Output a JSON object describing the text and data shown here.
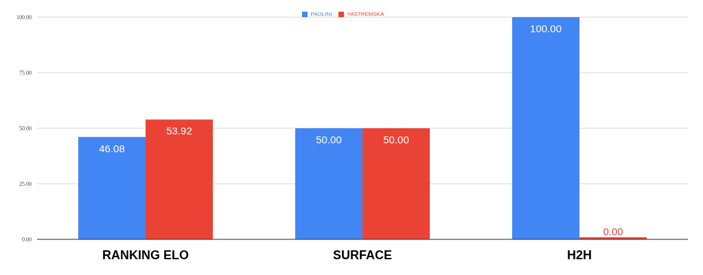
{
  "chart_data": {
    "type": "bar",
    "categories": [
      "RANKING ELO",
      "SURFACE",
      "H2H"
    ],
    "series": [
      {
        "name": "PAOLINI",
        "color": "#4285f4",
        "values": [
          46.08,
          50,
          100
        ],
        "value_labels": [
          "46.08",
          "50.00",
          "100.00"
        ]
      },
      {
        "name": "YASTREMSKA",
        "color": "#ea4335",
        "values": [
          53.92,
          50,
          0
        ],
        "value_labels": [
          "53.92",
          "50.00",
          "0.00"
        ]
      }
    ],
    "ylim": [
      0,
      100
    ],
    "yticks": [
      {
        "value": 0,
        "label": "0.00"
      },
      {
        "value": 25,
        "label": "25.00"
      },
      {
        "value": 50,
        "label": "50.00"
      },
      {
        "value": 75,
        "label": "75.00"
      },
      {
        "value": 100,
        "label": "100.00"
      }
    ],
    "grid": "y",
    "legend": "top"
  }
}
